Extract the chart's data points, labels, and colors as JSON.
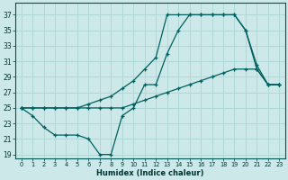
{
  "background_color": "#cce8e8",
  "grid_color": "#b0d8d8",
  "line_color": "#006060",
  "xlabel": "Humidex (Indice chaleur)",
  "xlim": [
    -0.5,
    23.5
  ],
  "ylim": [
    18.5,
    38.5
  ],
  "xticks": [
    0,
    1,
    2,
    3,
    4,
    5,
    6,
    7,
    8,
    9,
    10,
    11,
    12,
    13,
    14,
    15,
    16,
    17,
    18,
    19,
    20,
    21,
    22,
    23
  ],
  "yticks": [
    19,
    21,
    23,
    25,
    27,
    29,
    31,
    33,
    35,
    37
  ],
  "line1_x": [
    0,
    1,
    2,
    3,
    4,
    5,
    6,
    7,
    8,
    9,
    10,
    11,
    12,
    13,
    14,
    15,
    16,
    17,
    18,
    19,
    20,
    21,
    22,
    23
  ],
  "line1_y": [
    25,
    24,
    22.5,
    21.5,
    21.5,
    21.5,
    21,
    19,
    19,
    24,
    25,
    28,
    28,
    32,
    35,
    37,
    37,
    37,
    37,
    37,
    35,
    30,
    28,
    28
  ],
  "line2_x": [
    0,
    1,
    2,
    3,
    4,
    5,
    6,
    7,
    8,
    9,
    10,
    11,
    12,
    13,
    14,
    15,
    16,
    17,
    18,
    19,
    20,
    21,
    22,
    23
  ],
  "line2_y": [
    25,
    25,
    25,
    25,
    25,
    25,
    25.5,
    26,
    26.5,
    27.5,
    28.5,
    30,
    31.5,
    37,
    37,
    37,
    37,
    37,
    37,
    37,
    35,
    30.5,
    28,
    28
  ],
  "line3_x": [
    0,
    1,
    2,
    3,
    4,
    5,
    6,
    7,
    8,
    9,
    10,
    11,
    12,
    13,
    14,
    15,
    16,
    17,
    18,
    19,
    20,
    21,
    22,
    23
  ],
  "line3_y": [
    25,
    25,
    25,
    25,
    25,
    25,
    25,
    25,
    25,
    25,
    25.5,
    26,
    26.5,
    27,
    27.5,
    28,
    28.5,
    29,
    29.5,
    30,
    30,
    30,
    28,
    28
  ]
}
